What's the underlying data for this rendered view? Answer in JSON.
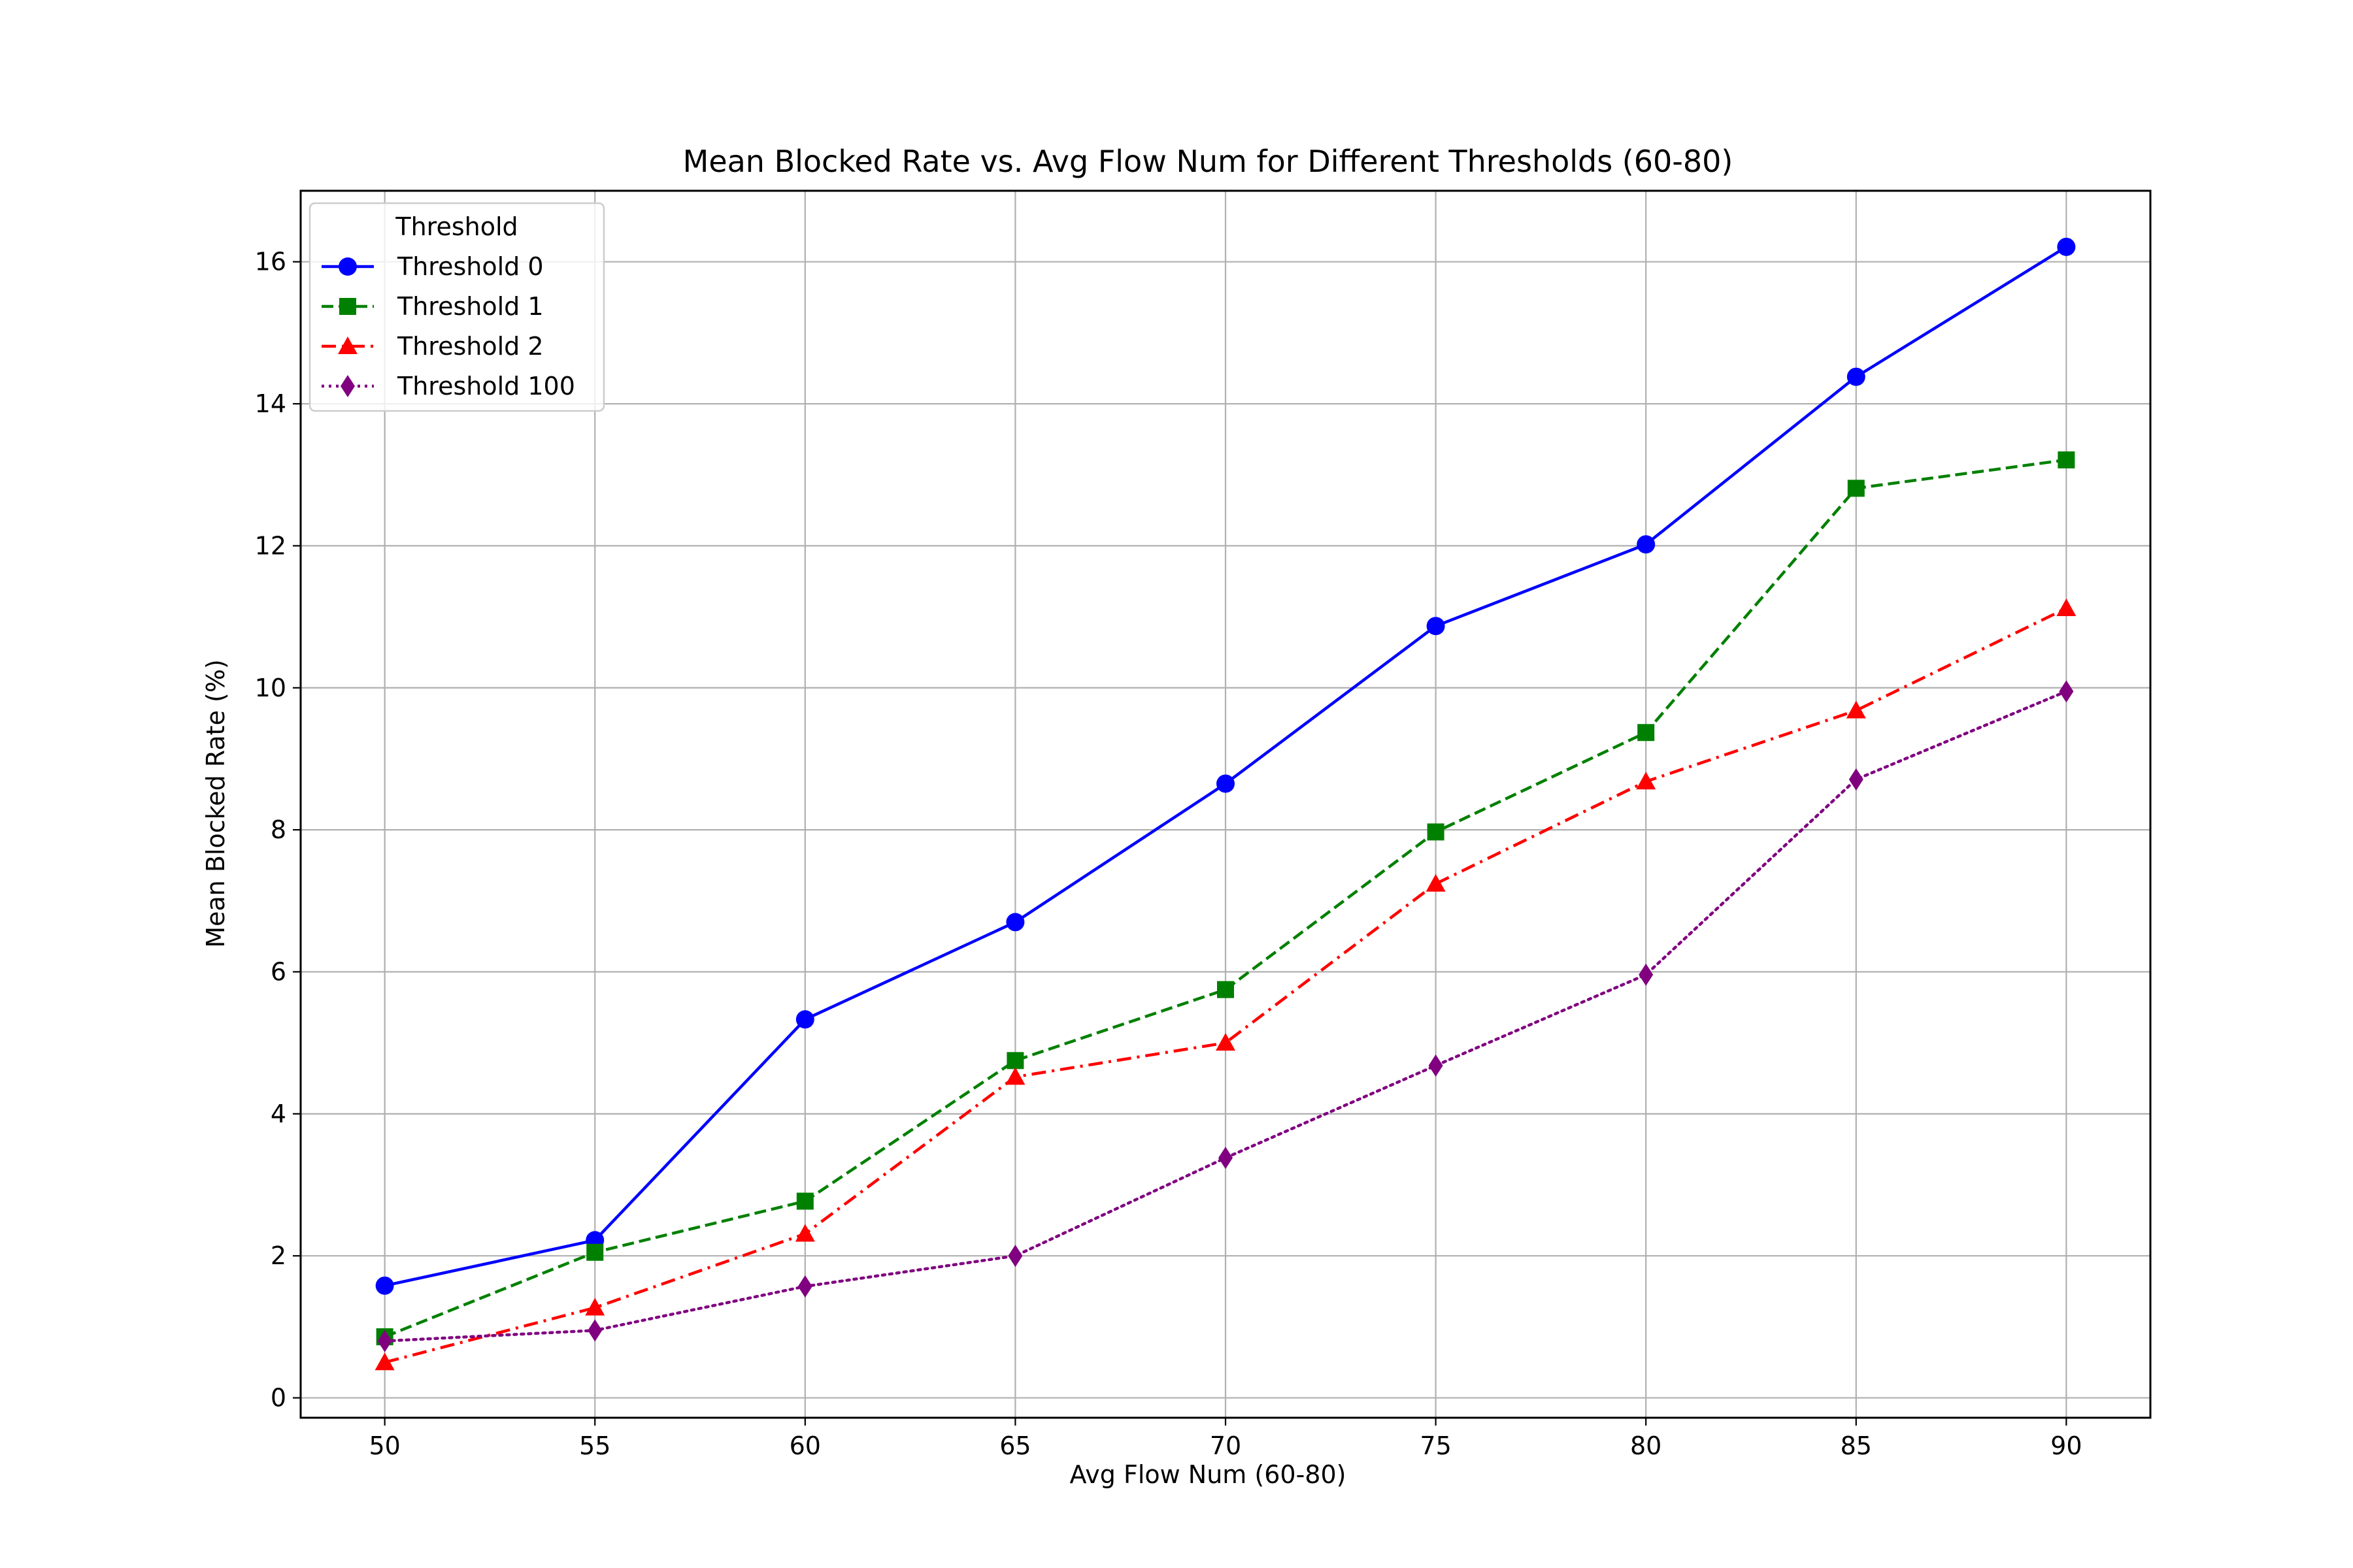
{
  "chart_data": {
    "type": "line",
    "title": "Mean Blocked Rate vs. Avg Flow Num for Different Thresholds (60-80)",
    "xlabel": "Avg Flow Num (60-80)",
    "ylabel": "Mean Blocked Rate (%)",
    "xlim": [
      48,
      92
    ],
    "ylim": [
      -0.28,
      17.0
    ],
    "xticks": [
      50,
      55,
      60,
      65,
      70,
      75,
      80,
      85,
      90
    ],
    "yticks": [
      0,
      2,
      4,
      6,
      8,
      10,
      12,
      14,
      16
    ],
    "grid": true,
    "legend": {
      "title": "Threshold",
      "placement": "upper-left"
    },
    "x": [
      50,
      55,
      60,
      65,
      70,
      75,
      80,
      85,
      90
    ],
    "series": [
      {
        "name": "Threshold 0",
        "color": "#0000ff",
        "marker": "circle",
        "linestyle": "solid",
        "values": [
          1.58,
          2.22,
          5.33,
          6.7,
          8.65,
          10.87,
          12.02,
          14.38,
          16.21
        ]
      },
      {
        "name": "Threshold 1",
        "color": "#008000",
        "marker": "square",
        "linestyle": "dashed",
        "values": [
          0.86,
          2.05,
          2.77,
          4.75,
          5.75,
          7.97,
          9.37,
          12.81,
          13.21
        ]
      },
      {
        "name": "Threshold 2",
        "color": "#ff0000",
        "marker": "triangle",
        "linestyle": "dashdot",
        "values": [
          0.5,
          1.27,
          2.31,
          4.52,
          5.0,
          7.24,
          8.68,
          9.68,
          11.12
        ]
      },
      {
        "name": "Threshold 100",
        "color": "#800080",
        "marker": "diamond",
        "linestyle": "dotted",
        "values": [
          0.8,
          0.95,
          1.57,
          2.0,
          3.38,
          4.68,
          5.96,
          8.71,
          9.95
        ]
      }
    ]
  }
}
